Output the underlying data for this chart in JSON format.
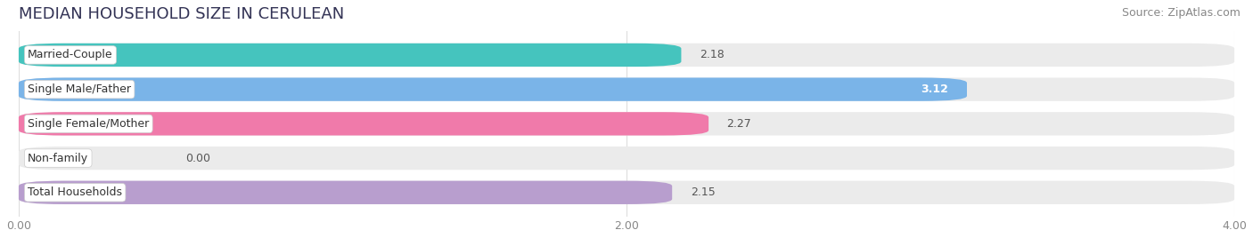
{
  "title": "MEDIAN HOUSEHOLD SIZE IN CERULEAN",
  "source": "Source: ZipAtlas.com",
  "categories": [
    "Married-Couple",
    "Single Male/Father",
    "Single Female/Mother",
    "Non-family",
    "Total Households"
  ],
  "values": [
    2.18,
    3.12,
    2.27,
    0.0,
    2.15
  ],
  "bar_colors": [
    "#45c4be",
    "#7ab4e8",
    "#f07aaa",
    "#f9c99a",
    "#b89ece"
  ],
  "xlim": [
    0,
    4.0
  ],
  "xticks": [
    0.0,
    2.0,
    4.0
  ],
  "xtick_labels": [
    "0.00",
    "2.00",
    "4.00"
  ],
  "background_color": "#ffffff",
  "bar_background_color": "#ebebeb",
  "title_fontsize": 13,
  "source_fontsize": 9,
  "bar_label_fontsize": 9,
  "value_label_fontsize": 9,
  "tick_fontsize": 9
}
